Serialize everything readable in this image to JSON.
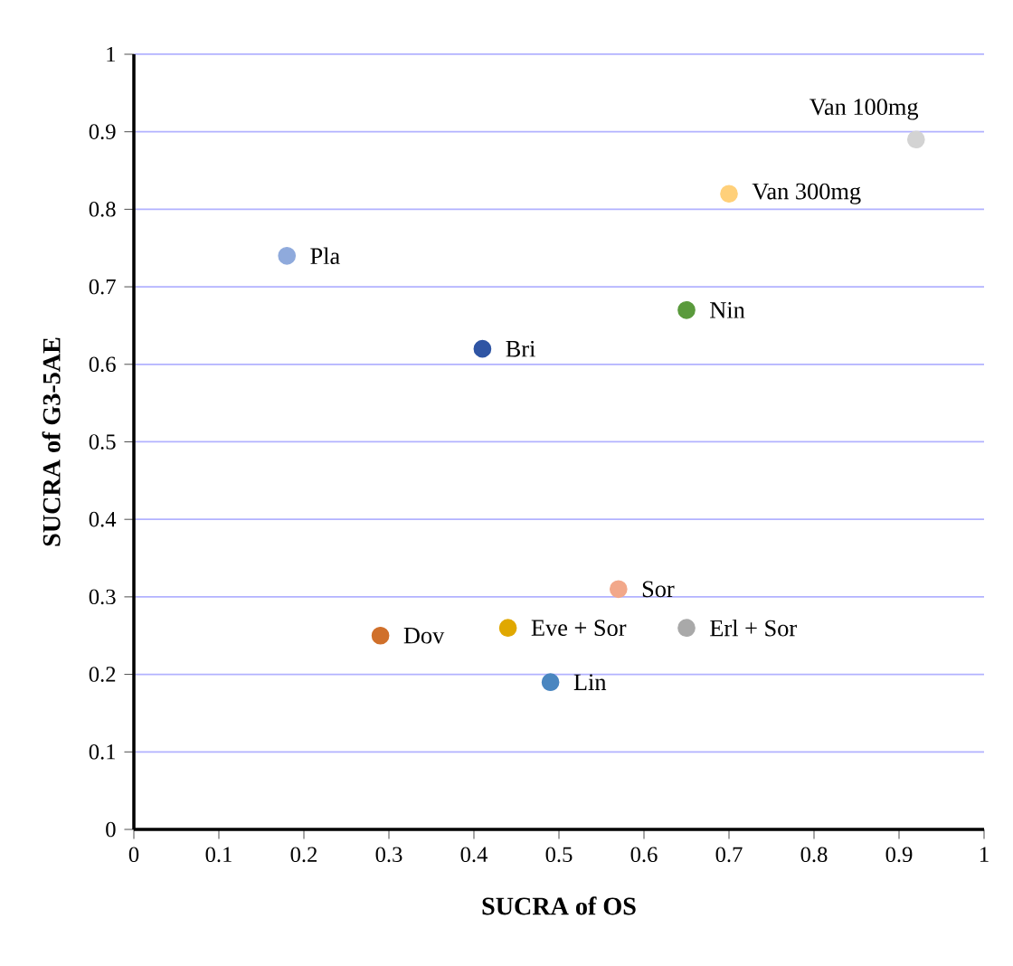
{
  "chart_data": {
    "type": "scatter",
    "xlabel": "SUCRA of OS",
    "ylabel": "SUCRA of G3-5AE",
    "xlim": [
      0,
      1
    ],
    "ylim": [
      0,
      1
    ],
    "xticks": [
      0,
      0.1,
      0.2,
      0.3,
      0.4,
      0.5,
      0.6,
      0.7,
      0.8,
      0.9,
      1
    ],
    "yticks": [
      0,
      0.1,
      0.2,
      0.3,
      0.4,
      0.5,
      0.6,
      0.7,
      0.8,
      0.9,
      1
    ],
    "grid": "y",
    "legend": false,
    "marker": "circle",
    "series": [
      {
        "name": "Pla",
        "color": "#8faadc",
        "x": [
          0.18
        ],
        "values": [
          0.74
        ]
      },
      {
        "name": "Bri",
        "color": "#2f55a4",
        "x": [
          0.41
        ],
        "values": [
          0.62
        ]
      },
      {
        "name": "Dov",
        "color": "#d0702b",
        "x": [
          0.29
        ],
        "values": [
          0.25
        ]
      },
      {
        "name": "Eve + Sor",
        "color": "#e0a800",
        "x": [
          0.44
        ],
        "values": [
          0.26
        ]
      },
      {
        "name": "Lin",
        "color": "#4a86c0",
        "x": [
          0.49
        ],
        "values": [
          0.19
        ]
      },
      {
        "name": "Sor",
        "color": "#f2a88a",
        "x": [
          0.57
        ],
        "values": [
          0.31
        ]
      },
      {
        "name": "Erl + Sor",
        "color": "#a9a9a9",
        "x": [
          0.65
        ],
        "values": [
          0.26
        ]
      },
      {
        "name": "Nin",
        "color": "#5a9a3c",
        "x": [
          0.65
        ],
        "values": [
          0.67
        ]
      },
      {
        "name": "Van 300mg",
        "color": "#ffd07a",
        "x": [
          0.7
        ],
        "values": [
          0.82
        ]
      },
      {
        "name": "Van 100mg",
        "color": "#d3d3d3",
        "x": [
          0.92
        ],
        "values": [
          0.89
        ]
      }
    ]
  }
}
